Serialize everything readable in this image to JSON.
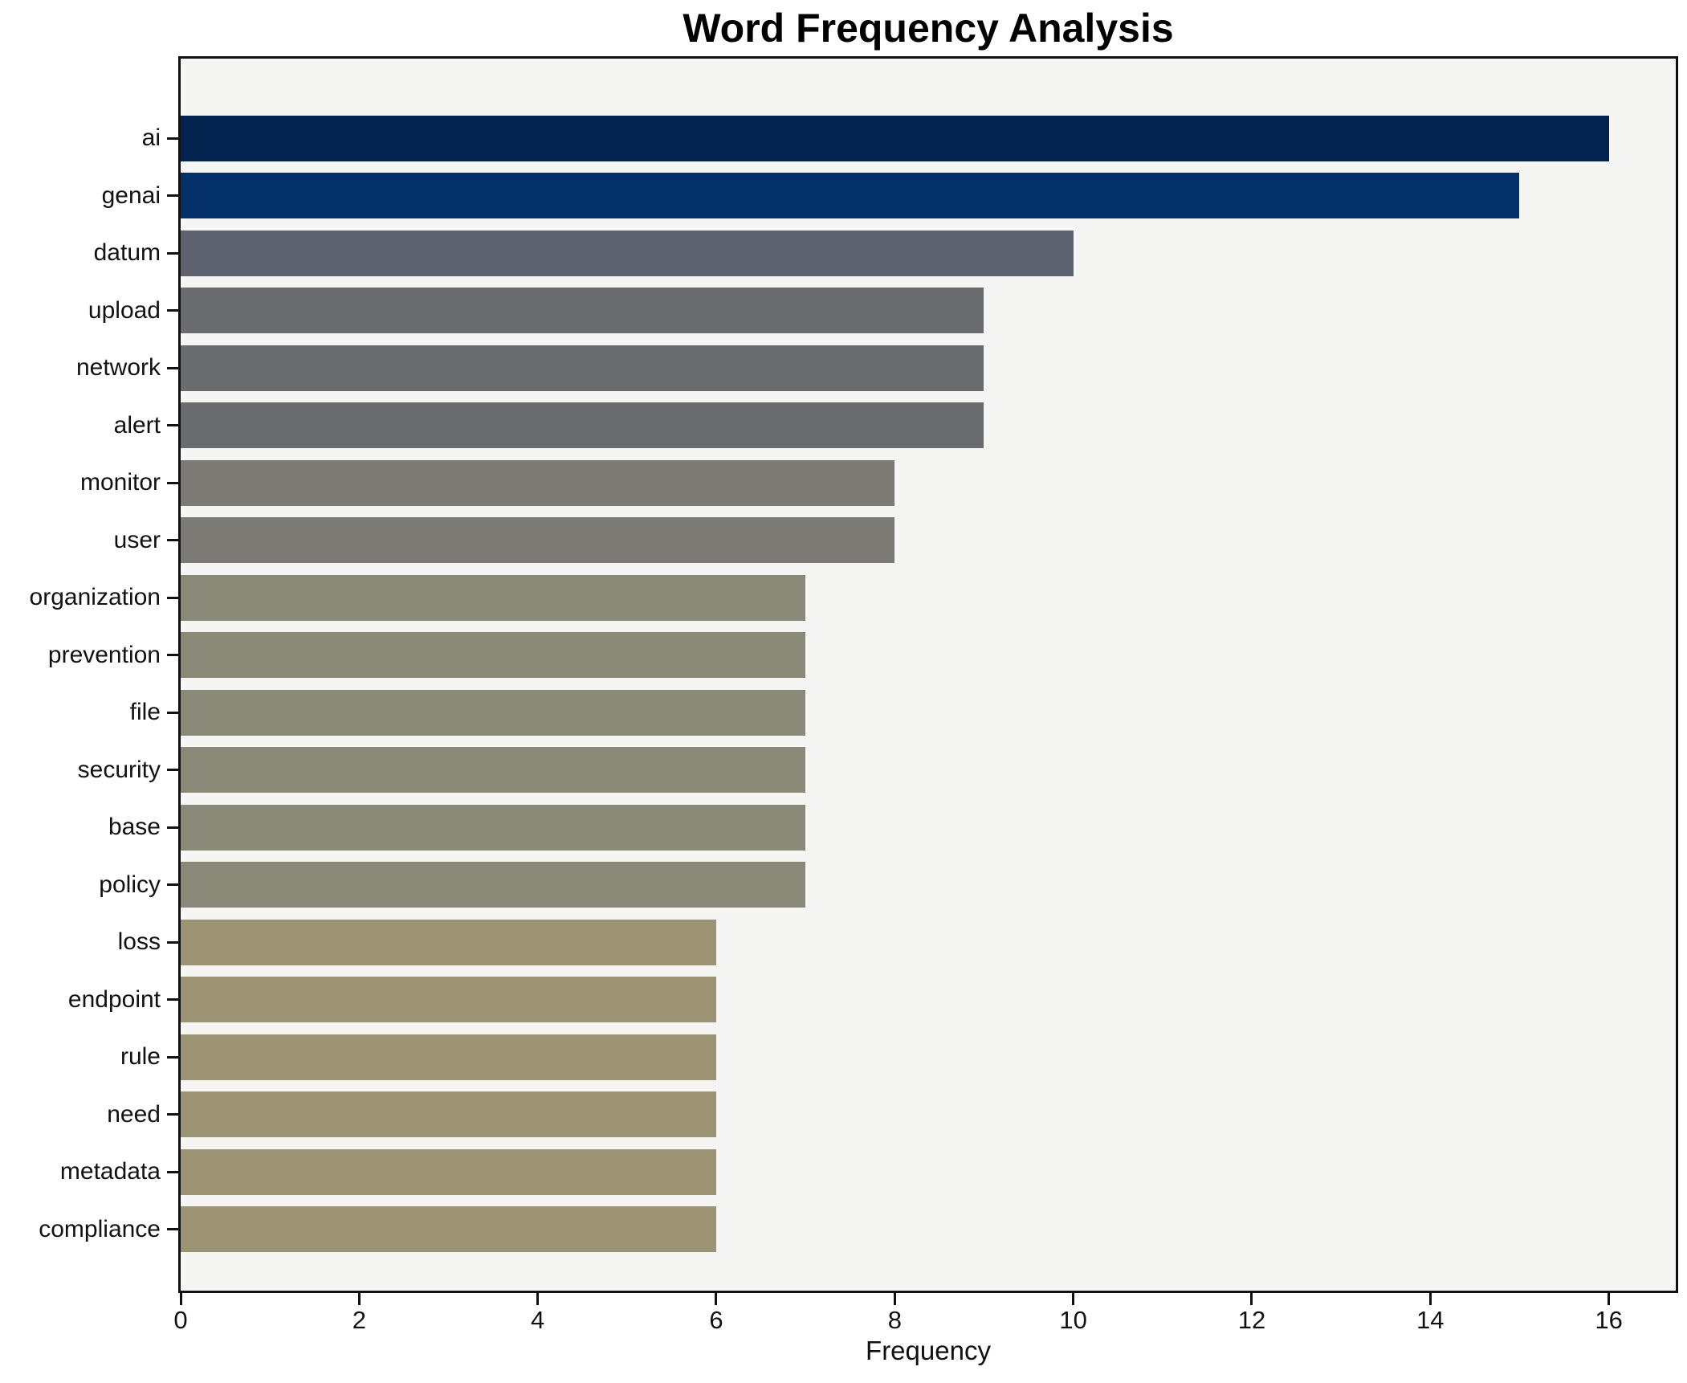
{
  "title": "Word Frequency Analysis",
  "chart_data": {
    "type": "bar",
    "orientation": "horizontal",
    "title": "Word Frequency Analysis",
    "xlabel": "Frequency",
    "ylabel": "",
    "categories": [
      "ai",
      "genai",
      "datum",
      "upload",
      "network",
      "alert",
      "monitor",
      "user",
      "organization",
      "prevention",
      "file",
      "security",
      "base",
      "policy",
      "loss",
      "endpoint",
      "rule",
      "need",
      "metadata",
      "compliance"
    ],
    "values": [
      16,
      15,
      10,
      9,
      9,
      9,
      8,
      8,
      7,
      7,
      7,
      7,
      7,
      7,
      6,
      6,
      6,
      6,
      6,
      6
    ],
    "bar_colors": [
      "#02234d",
      "#04306a",
      "#5e626e",
      "#6b6c70",
      "#6b6c70",
      "#6b6c70",
      "#7b7a74",
      "#7b7a74",
      "#8a8877",
      "#8a8877",
      "#8a8877",
      "#8a8877",
      "#8a8877",
      "#8a8877",
      "#9b9373",
      "#9b9373",
      "#9b9373",
      "#9b9373",
      "#9b9373",
      "#9b9373"
    ],
    "xticks": [
      0,
      2,
      4,
      6,
      8,
      10,
      12,
      14,
      16
    ],
    "xlim": [
      0,
      16.75
    ],
    "grid": false,
    "legend": null,
    "plot_background": "#f5f5f3",
    "figure_background": "#ffffff",
    "spine_color": "#111111",
    "colormap_hint": "cividis (dark navy = high frequency, khaki = low frequency)"
  }
}
